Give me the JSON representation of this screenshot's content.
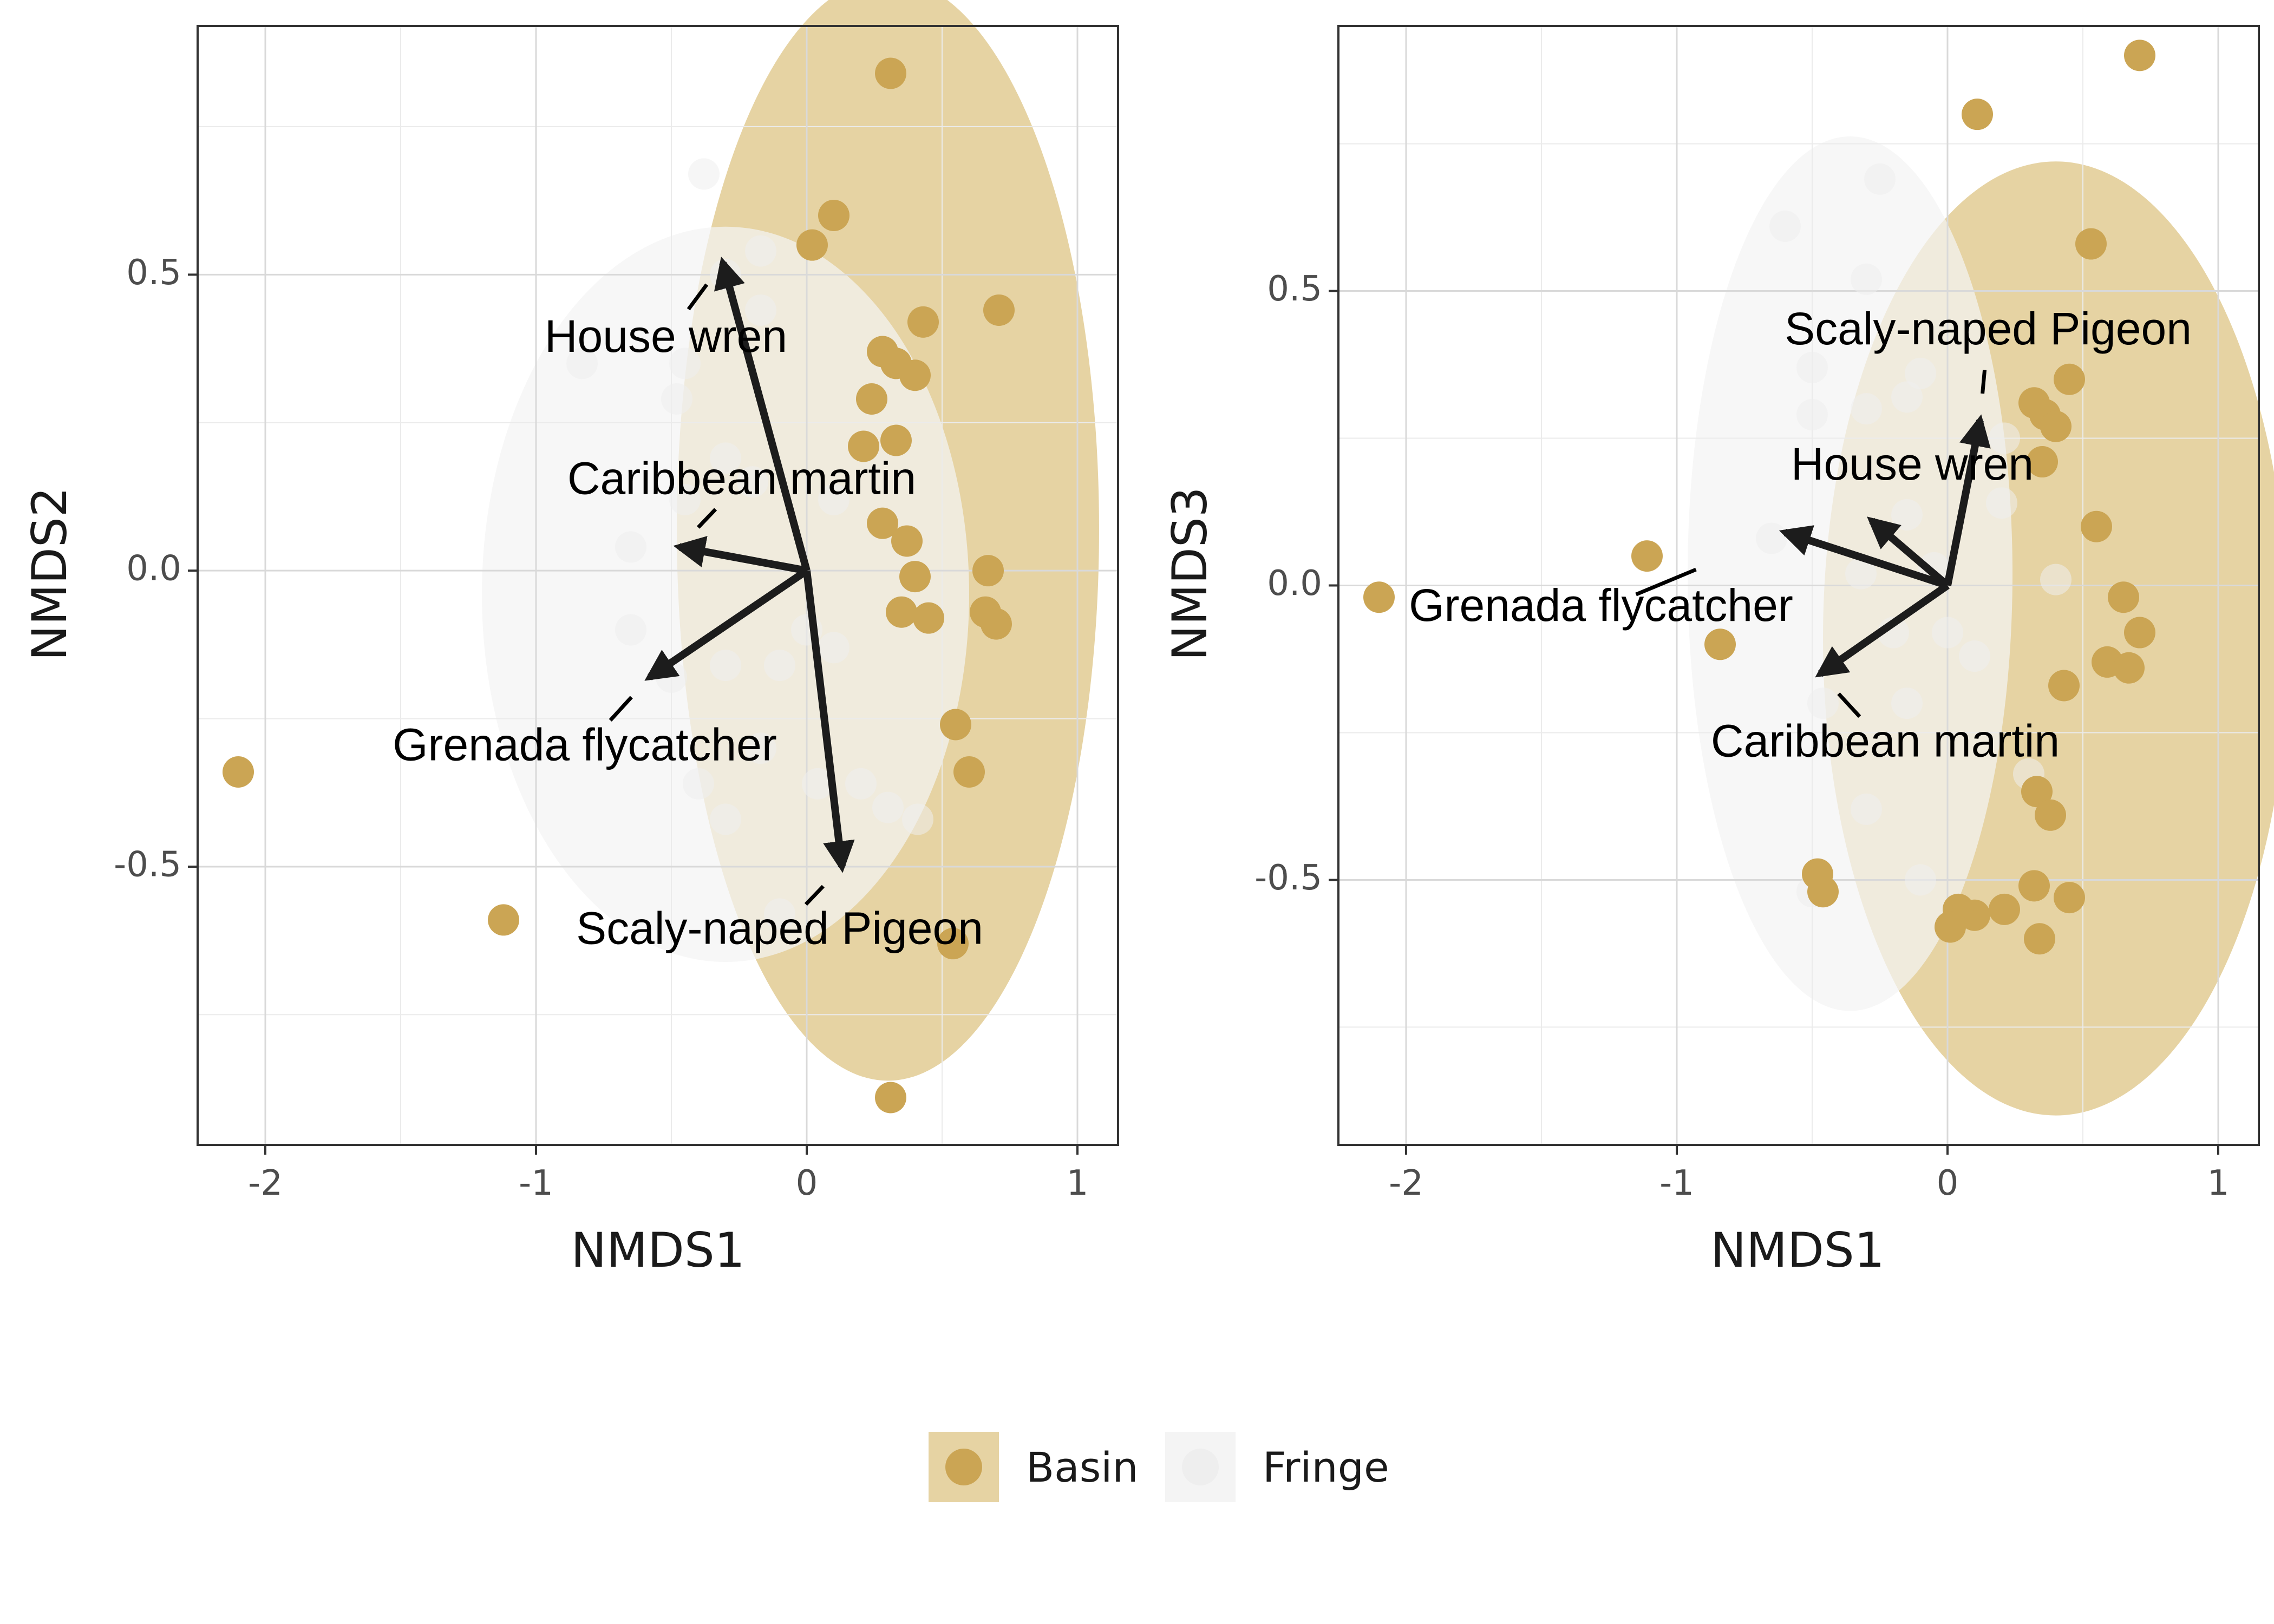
{
  "chart_data": [
    {
      "type": "scatter",
      "xlabel": "NMDS1",
      "ylabel": "NMDS2",
      "xlim": [
        -2.25,
        1.15
      ],
      "ylim": [
        -0.97,
        0.92
      ],
      "xticks": [
        -2,
        -1,
        0,
        1
      ],
      "yticks": [
        0.5,
        0.0,
        -0.5
      ],
      "xtick_labels": [
        "-2",
        "-1",
        "0",
        "1"
      ],
      "ytick_labels": [
        "0.5",
        "0.0",
        "-0.5"
      ],
      "grid": true,
      "series": [
        {
          "name": "Basin",
          "color": "#cba554",
          "ellipse": {
            "cx": 0.3,
            "cy": 0.07,
            "rx": 0.78,
            "ry": 0.69,
            "color": "#e6d3a3"
          },
          "points": [
            [
              0.31,
              0.84
            ],
            [
              0.1,
              0.6
            ],
            [
              0.02,
              0.55
            ],
            [
              0.43,
              0.42
            ],
            [
              0.71,
              0.44
            ],
            [
              0.28,
              0.37
            ],
            [
              0.33,
              0.35
            ],
            [
              0.4,
              0.33
            ],
            [
              0.24,
              0.29
            ],
            [
              0.33,
              0.22
            ],
            [
              0.21,
              0.21
            ],
            [
              0.28,
              0.08
            ],
            [
              0.37,
              0.05
            ],
            [
              0.4,
              -0.01
            ],
            [
              0.67,
              0.0
            ],
            [
              0.35,
              -0.07
            ],
            [
              0.66,
              -0.07
            ],
            [
              0.45,
              -0.08
            ],
            [
              0.7,
              -0.09
            ],
            [
              0.55,
              -0.26
            ],
            [
              0.6,
              -0.34
            ],
            [
              0.54,
              -0.63
            ],
            [
              0.31,
              -0.89
            ],
            [
              -2.1,
              -0.34
            ],
            [
              -1.12,
              -0.59
            ]
          ]
        },
        {
          "name": "Fringe",
          "color": "#eeeeee",
          "ellipse": {
            "cx": -0.3,
            "cy": -0.04,
            "rx": 0.9,
            "ry": 0.46,
            "color": "#f4f4f4"
          },
          "points": [
            [
              -0.38,
              0.67
            ],
            [
              -0.17,
              0.54
            ],
            [
              -0.3,
              0.5
            ],
            [
              -0.17,
              0.44
            ],
            [
              -0.45,
              0.35
            ],
            [
              -0.83,
              0.35
            ],
            [
              -0.48,
              0.29
            ],
            [
              -0.3,
              0.19
            ],
            [
              -0.2,
              0.15
            ],
            [
              -0.45,
              0.12
            ],
            [
              -0.65,
              0.04
            ],
            [
              0.1,
              0.12
            ],
            [
              0.0,
              -0.1
            ],
            [
              0.1,
              -0.13
            ],
            [
              -0.65,
              -0.1
            ],
            [
              -0.3,
              -0.16
            ],
            [
              -0.1,
              -0.16
            ],
            [
              -0.5,
              -0.18
            ],
            [
              -0.17,
              -0.3
            ],
            [
              -0.4,
              -0.36
            ],
            [
              0.04,
              -0.36
            ],
            [
              0.2,
              -0.36
            ],
            [
              0.3,
              -0.4
            ],
            [
              -0.3,
              -0.42
            ],
            [
              0.41,
              -0.42
            ],
            [
              -0.1,
              -0.58
            ]
          ]
        }
      ],
      "arrows": [
        {
          "label": "House wren",
          "x": -0.31,
          "y": 0.52,
          "label_x": -0.52,
          "label_y": 0.39
        },
        {
          "label": "Caribbean martin",
          "x": -0.47,
          "y": 0.04,
          "label_x": -0.24,
          "label_y": 0.15
        },
        {
          "label": "Grenada flycatcher",
          "x": -0.58,
          "y": -0.18,
          "label_x": -0.82,
          "label_y": -0.3
        },
        {
          "label": "Scaly-naped Pigeon",
          "x": 0.13,
          "y": -0.5,
          "label_x": -0.1,
          "label_y": -0.61
        }
      ]
    },
    {
      "type": "scatter",
      "xlabel": "NMDS1",
      "ylabel": "NMDS3",
      "xlim": [
        -2.25,
        1.15
      ],
      "ylim": [
        -0.95,
        0.95
      ],
      "xticks": [
        -2,
        -1,
        0,
        1
      ],
      "yticks": [
        0.5,
        0.0,
        -0.5
      ],
      "xtick_labels": [
        "-2",
        "-1",
        "0",
        "1"
      ],
      "ytick_labels": [
        "0.5",
        "0.0",
        "-0.5"
      ],
      "grid": true,
      "series": [
        {
          "name": "Basin",
          "color": "#cba554",
          "ellipse": {
            "cx": 0.4,
            "cy": -0.09,
            "rx": 0.86,
            "ry": 0.6,
            "color": "#e6d3a3"
          },
          "points": [
            [
              0.71,
              0.9
            ],
            [
              0.11,
              0.8
            ],
            [
              0.53,
              0.58
            ],
            [
              0.45,
              0.35
            ],
            [
              0.32,
              0.31
            ],
            [
              0.36,
              0.29
            ],
            [
              0.4,
              0.27
            ],
            [
              0.35,
              0.21
            ],
            [
              0.55,
              0.1
            ],
            [
              0.65,
              -0.02
            ],
            [
              0.71,
              -0.08
            ],
            [
              0.59,
              -0.13
            ],
            [
              0.67,
              -0.14
            ],
            [
              0.43,
              -0.17
            ],
            [
              0.33,
              -0.35
            ],
            [
              0.38,
              -0.39
            ],
            [
              0.32,
              -0.51
            ],
            [
              0.45,
              -0.53
            ],
            [
              0.21,
              -0.55
            ],
            [
              0.1,
              -0.56
            ],
            [
              0.04,
              -0.55
            ],
            [
              0.01,
              -0.58
            ],
            [
              0.34,
              -0.6
            ],
            [
              -0.48,
              -0.49
            ],
            [
              -0.46,
              -0.52
            ],
            [
              -1.11,
              0.05
            ],
            [
              -0.84,
              -0.1
            ],
            [
              -2.1,
              -0.02
            ]
          ]
        },
        {
          "name": "Fringe",
          "color": "#eeeeee",
          "ellipse": {
            "cx": -0.36,
            "cy": 0.02,
            "rx": 0.6,
            "ry": 0.55,
            "color": "#f4f4f4"
          },
          "points": [
            [
              -0.25,
              0.69
            ],
            [
              -0.6,
              0.61
            ],
            [
              -0.3,
              0.52
            ],
            [
              -0.5,
              0.37
            ],
            [
              -0.3,
              0.3
            ],
            [
              -0.5,
              0.29
            ],
            [
              -0.1,
              0.36
            ],
            [
              -0.15,
              0.32
            ],
            [
              0.21,
              0.25
            ],
            [
              0.2,
              0.14
            ],
            [
              -0.15,
              0.12
            ],
            [
              -0.65,
              0.08
            ],
            [
              -0.32,
              0.02
            ],
            [
              -0.05,
              0.03
            ],
            [
              0.4,
              0.01
            ],
            [
              -0.2,
              -0.08
            ],
            [
              0.0,
              -0.08
            ],
            [
              0.1,
              -0.12
            ],
            [
              -0.15,
              -0.2
            ],
            [
              -0.46,
              -0.2
            ],
            [
              0.3,
              -0.32
            ],
            [
              -0.3,
              -0.38
            ],
            [
              -0.1,
              -0.5
            ],
            [
              -0.5,
              -0.52
            ]
          ]
        }
      ],
      "arrows": [
        {
          "label": "Scaly-naped Pigeon",
          "x": 0.12,
          "y": 0.28,
          "label_x": 0.15,
          "label_y": 0.43
        },
        {
          "label": "House wren",
          "x": -0.28,
          "y": 0.11,
          "label_x": -0.13,
          "label_y": 0.2
        },
        {
          "label": "Grenada flycatcher",
          "x": -0.6,
          "y": 0.09,
          "label_x": -1.28,
          "label_y": -0.04
        },
        {
          "label": "Caribbean martin",
          "x": -0.47,
          "y": -0.15,
          "label_x": -0.23,
          "label_y": -0.27
        }
      ]
    }
  ],
  "legend": {
    "position": "bottom",
    "items": [
      {
        "label": "Basin",
        "color": "#cba554",
        "bg": "#e6d3a3"
      },
      {
        "label": "Fringe",
        "color": "#eeeeee",
        "bg": "#f4f4f4"
      }
    ]
  }
}
